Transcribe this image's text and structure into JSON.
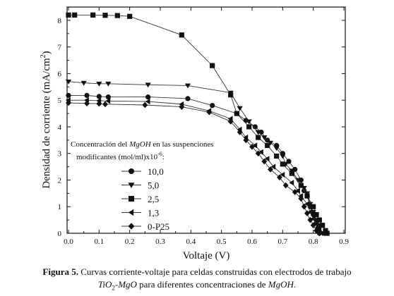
{
  "figure": {
    "legend": {
      "title_parts": [
        "Concentración del ",
        "MgOH",
        " en las suspenciones"
      ],
      "title_line2": "modificantes (mol/ml)x10",
      "title_sup": "-6",
      "title_end": ":"
    },
    "caption": {
      "label": "Figura 5.",
      "text1": "Curvas corriente-voltaje para celdas construidas con electrodos de trabajo",
      "tio": "TiO",
      "sub": "2",
      "mgo": "-MgO",
      "text2": " para diferentes concentraciones de ",
      "mgoh": "MgOH",
      "end": "."
    }
  },
  "chart_data": {
    "type": "line",
    "xlabel": "Voltaje (V)",
    "ylabel": "Densidad de corriente (mA/cm",
    "ylabel_sup": "2",
    "ylabel_end": ")",
    "xlim": [
      0.0,
      0.9
    ],
    "ylim": [
      0,
      8.5
    ],
    "x_ticks": [
      "0.0",
      "0.1",
      "0.2",
      "0.3",
      "0.4",
      "0.5",
      "0.6",
      "0.7",
      "0.8",
      "0.9"
    ],
    "y_ticks": [
      "0",
      "1",
      "2",
      "3",
      "4",
      "5",
      "6",
      "7",
      "8"
    ],
    "grid": false,
    "legend_position": "lower-left",
    "series": [
      {
        "name": "10,0",
        "marker": "circle",
        "color": "#111111",
        "points": [
          [
            0,
            5.18
          ],
          [
            0.06,
            5.18
          ],
          [
            0.1,
            5.14
          ],
          [
            0.13,
            5.12
          ],
          [
            0.26,
            5.12
          ],
          [
            0.39,
            5.06
          ],
          [
            0.47,
            4.8
          ],
          [
            0.55,
            4.5
          ],
          [
            0.58,
            4.24
          ],
          [
            0.61,
            4.0
          ],
          [
            0.63,
            3.8
          ],
          [
            0.65,
            3.5
          ],
          [
            0.68,
            3.3
          ],
          [
            0.7,
            3.0
          ],
          [
            0.72,
            2.7
          ],
          [
            0.74,
            2.4
          ],
          [
            0.76,
            2.0
          ],
          [
            0.77,
            1.6
          ],
          [
            0.78,
            1.4
          ],
          [
            0.79,
            1.0
          ],
          [
            0.8,
            0.7
          ],
          [
            0.81,
            0.4
          ],
          [
            0.815,
            0.2
          ],
          [
            0.82,
            0.0
          ]
        ]
      },
      {
        "name": "5,0",
        "marker": "triangle-down",
        "color": "#111111",
        "points": [
          [
            0,
            5.7
          ],
          [
            0.05,
            5.65
          ],
          [
            0.1,
            5.62
          ],
          [
            0.13,
            5.62
          ],
          [
            0.26,
            5.58
          ],
          [
            0.39,
            5.55
          ],
          [
            0.53,
            5.28
          ],
          [
            0.56,
            4.7
          ],
          [
            0.59,
            4.2
          ],
          [
            0.62,
            3.8
          ],
          [
            0.64,
            3.6
          ],
          [
            0.66,
            3.4
          ],
          [
            0.68,
            3.2
          ],
          [
            0.7,
            2.9
          ],
          [
            0.71,
            2.6
          ],
          [
            0.73,
            2.35
          ],
          [
            0.75,
            2.0
          ],
          [
            0.77,
            1.7
          ],
          [
            0.78,
            1.5
          ],
          [
            0.79,
            1.1
          ],
          [
            0.8,
            0.8
          ],
          [
            0.81,
            0.5
          ],
          [
            0.82,
            0.3
          ],
          [
            0.83,
            0.0
          ]
        ]
      },
      {
        "name": "2,5",
        "marker": "square",
        "color": "#111111",
        "points": [
          [
            0,
            8.2
          ],
          [
            0.02,
            8.2
          ],
          [
            0.08,
            8.2
          ],
          [
            0.12,
            8.19
          ],
          [
            0.16,
            8.18
          ],
          [
            0.2,
            8.15
          ],
          [
            0.37,
            7.45
          ],
          [
            0.47,
            6.3
          ],
          [
            0.53,
            5.2
          ],
          [
            0.55,
            4.5
          ],
          [
            0.59,
            4.0
          ],
          [
            0.62,
            3.6
          ],
          [
            0.65,
            3.3
          ],
          [
            0.68,
            2.9
          ],
          [
            0.7,
            2.6
          ],
          [
            0.73,
            2.25
          ],
          [
            0.76,
            1.8
          ],
          [
            0.78,
            1.4
          ],
          [
            0.8,
            1.0
          ],
          [
            0.81,
            0.7
          ],
          [
            0.82,
            0.5
          ],
          [
            0.83,
            0.3
          ],
          [
            0.84,
            0.1
          ],
          [
            0.845,
            0.0
          ]
        ]
      },
      {
        "name": "1,3",
        "marker": "triangle-left",
        "color": "#111111",
        "points": [
          [
            0,
            5.0
          ],
          [
            0.06,
            5.0
          ],
          [
            0.1,
            4.98
          ],
          [
            0.13,
            4.97
          ],
          [
            0.26,
            4.95
          ],
          [
            0.37,
            4.85
          ],
          [
            0.46,
            4.6
          ],
          [
            0.53,
            4.3
          ],
          [
            0.56,
            3.9
          ],
          [
            0.58,
            3.6
          ],
          [
            0.61,
            3.3
          ],
          [
            0.63,
            3.05
          ],
          [
            0.65,
            2.8
          ],
          [
            0.67,
            2.5
          ],
          [
            0.7,
            2.2
          ],
          [
            0.73,
            1.9
          ],
          [
            0.75,
            1.6
          ],
          [
            0.76,
            1.4
          ],
          [
            0.78,
            1.1
          ],
          [
            0.79,
            0.8
          ],
          [
            0.8,
            0.55
          ],
          [
            0.81,
            0.35
          ],
          [
            0.82,
            0.15
          ],
          [
            0.83,
            0.0
          ]
        ]
      },
      {
        "name": "0-P25",
        "marker": "diamond",
        "color": "#111111",
        "points": [
          [
            0,
            4.9
          ],
          [
            0.06,
            4.88
          ],
          [
            0.1,
            4.87
          ],
          [
            0.12,
            4.85
          ],
          [
            0.25,
            4.82
          ],
          [
            0.37,
            4.75
          ],
          [
            0.46,
            4.55
          ],
          [
            0.53,
            4.2
          ],
          [
            0.56,
            3.8
          ],
          [
            0.58,
            3.5
          ],
          [
            0.6,
            3.25
          ],
          [
            0.62,
            3.0
          ],
          [
            0.64,
            2.7
          ],
          [
            0.66,
            2.4
          ],
          [
            0.69,
            2.1
          ],
          [
            0.71,
            1.8
          ],
          [
            0.74,
            1.55
          ],
          [
            0.76,
            1.3
          ],
          [
            0.77,
            1.0
          ],
          [
            0.78,
            0.75
          ],
          [
            0.79,
            0.5
          ],
          [
            0.8,
            0.3
          ],
          [
            0.81,
            0.1
          ],
          [
            0.82,
            0.0
          ]
        ]
      }
    ]
  }
}
